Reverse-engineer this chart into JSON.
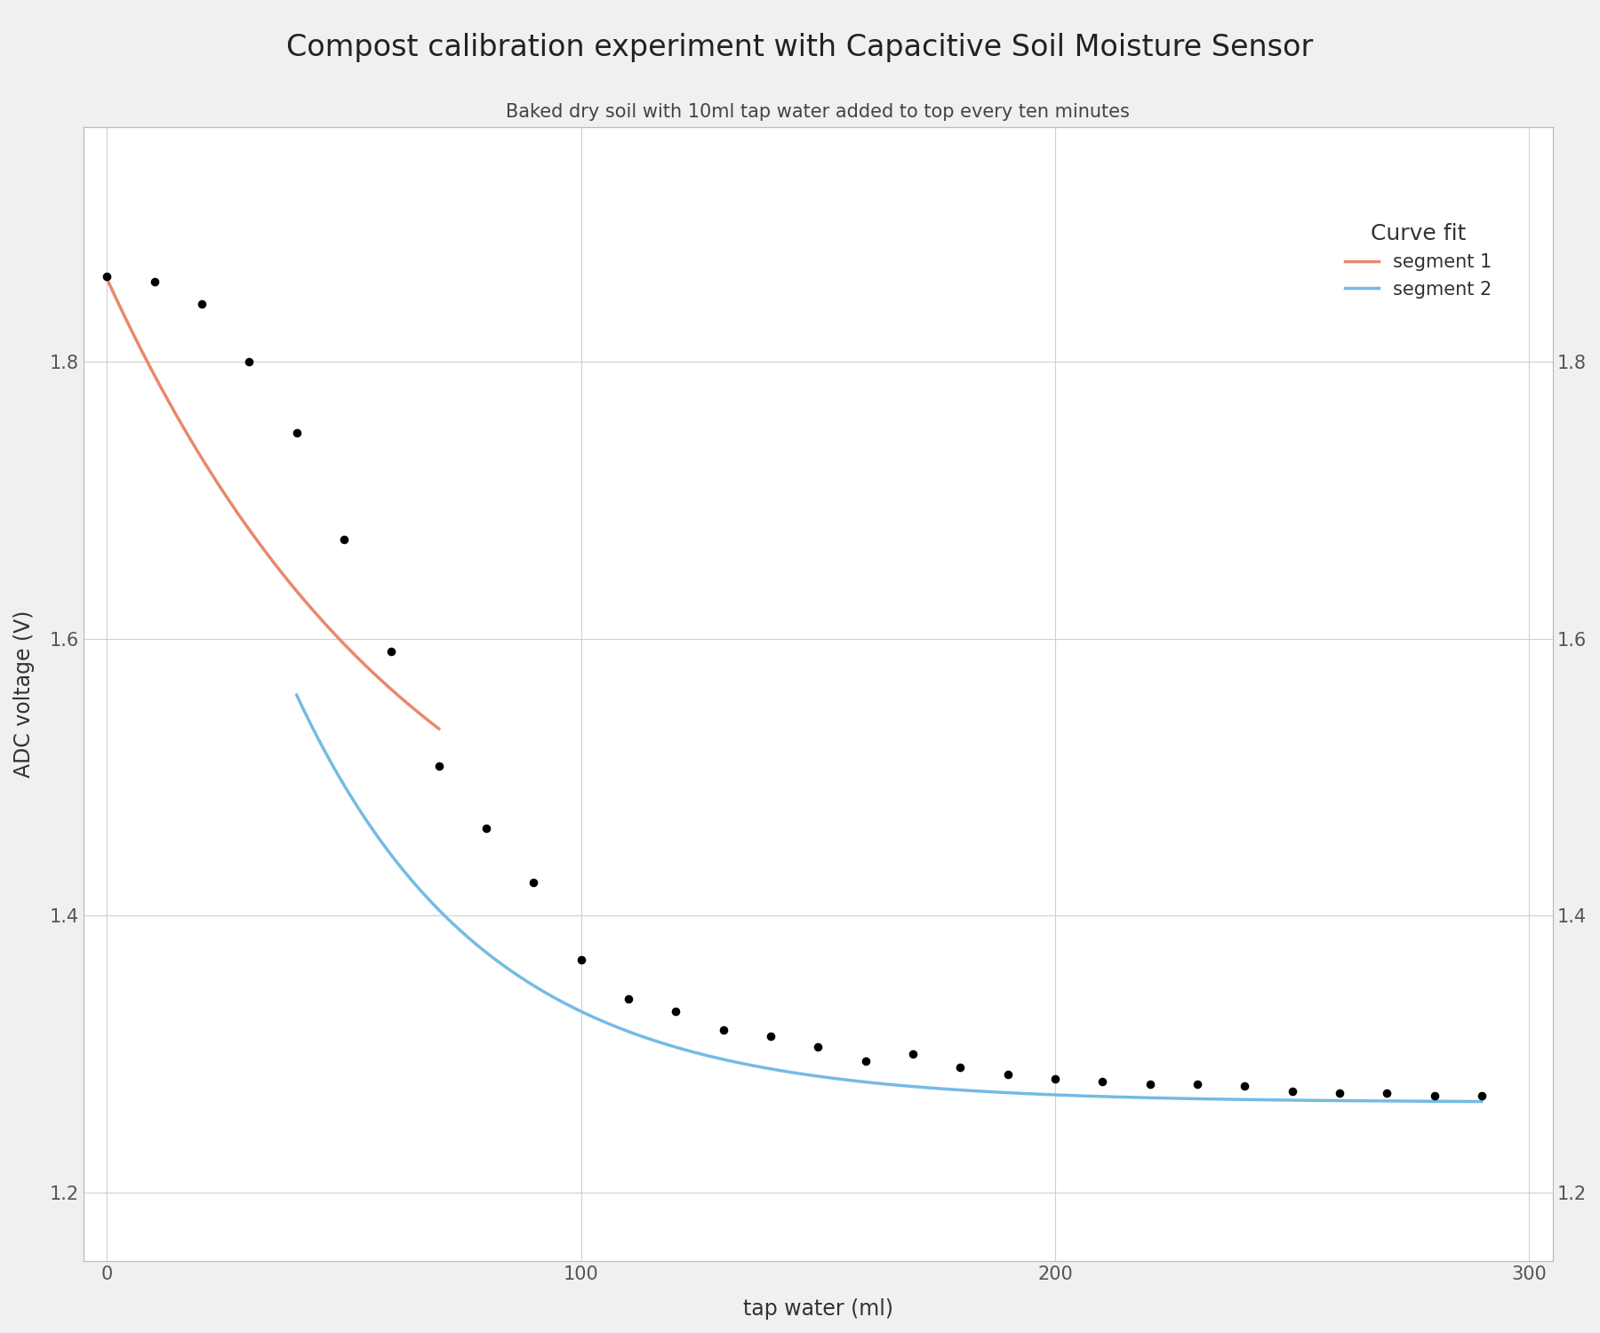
{
  "title": "Compost calibration experiment with Capacitive Soil Moisture Sensor",
  "subtitle": "Baked dry soil with 10ml tap water added to top every ten minutes",
  "xlabel": "tap water (ml)",
  "ylabel": "ADC voltage (V)",
  "xlim": [
    -5,
    305
  ],
  "ylim": [
    1.15,
    1.97
  ],
  "xticks": [
    0,
    100,
    200,
    300
  ],
  "yticks_left": [
    1.2,
    1.4,
    1.6,
    1.8
  ],
  "yticks_right": [
    1.2,
    1.4,
    1.6,
    1.8
  ],
  "background_color": "#f0f0f0",
  "plot_bg_color": "#ffffff",
  "grid_color": "#d0d0d0",
  "data_points_x": [
    0,
    10,
    20,
    30,
    40,
    50,
    60,
    70,
    80,
    90,
    100,
    110,
    120,
    130,
    140,
    150,
    160,
    170,
    180,
    190,
    200,
    210,
    220,
    230,
    240,
    250,
    260,
    270,
    280,
    290
  ],
  "data_points_y": [
    1.862,
    1.858,
    1.842,
    1.8,
    1.749,
    1.672,
    1.591,
    1.508,
    1.463,
    1.424,
    1.368,
    1.34,
    1.331,
    1.317,
    1.313,
    1.305,
    1.295,
    1.3,
    1.29,
    1.285,
    1.282,
    1.28,
    1.278,
    1.278,
    1.277,
    1.273,
    1.272,
    1.272,
    1.27,
    1.27
  ],
  "seg1_color": "#E8896A",
  "seg2_color": "#74BBE3",
  "seg1_x_start": 0,
  "seg1_x_end": 70,
  "seg2_x_start": 40,
  "seg2_x_end": 290,
  "legend_title": "Curve fit",
  "legend_seg1": "segment 1",
  "legend_seg2": "segment 2",
  "title_fontsize": 24,
  "subtitle_fontsize": 15,
  "axis_label_fontsize": 17,
  "tick_fontsize": 15,
  "legend_fontsize": 15,
  "legend_title_fontsize": 18
}
